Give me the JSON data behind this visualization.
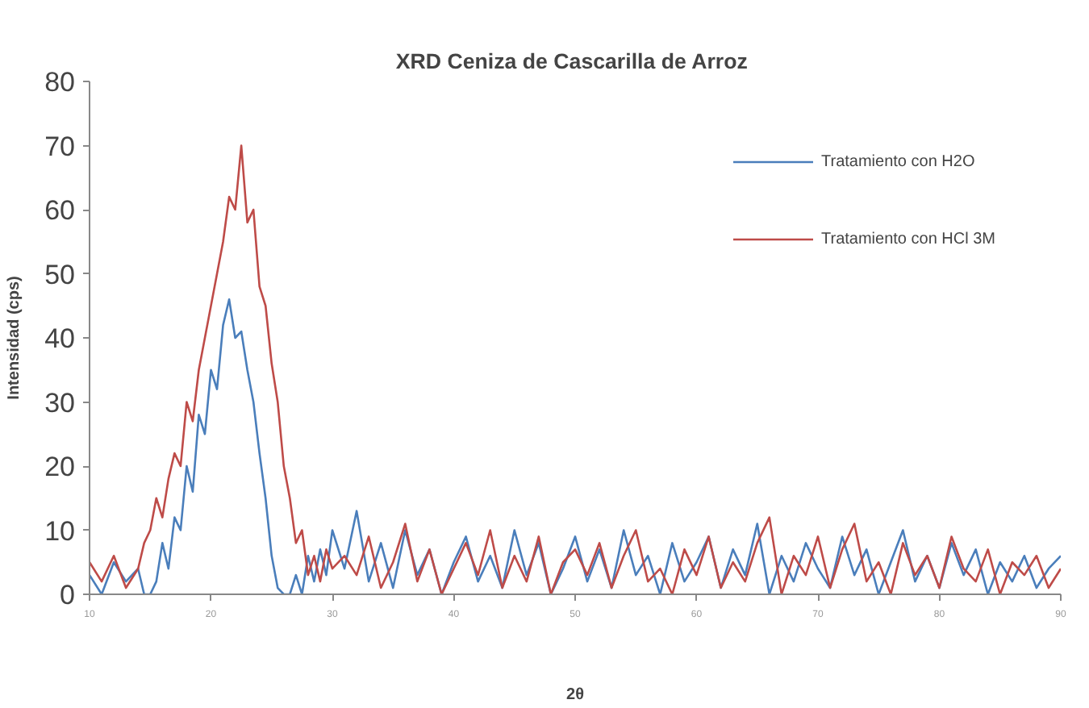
{
  "chart_data": {
    "type": "line",
    "title": "XRD  Ceniza de Cascarilla de Arroz",
    "xlabel": "2θ",
    "ylabel": "Intensidad (cps)",
    "x": [
      10,
      11,
      12,
      13,
      14,
      14.5,
      15,
      15.5,
      16,
      16.5,
      17,
      17.5,
      18,
      18.5,
      19,
      19.5,
      20,
      20.5,
      21,
      21.5,
      22,
      22.5,
      23,
      23.5,
      24,
      24.5,
      25,
      25.5,
      26,
      26.5,
      27,
      27.5,
      28,
      28.5,
      29,
      29.5,
      30,
      31,
      32,
      33,
      34,
      35,
      36,
      37,
      38,
      39,
      40,
      41,
      42,
      43,
      44,
      45,
      46,
      47,
      48,
      49,
      50,
      51,
      52,
      53,
      54,
      55,
      56,
      57,
      58,
      59,
      60,
      61,
      62,
      63,
      64,
      65,
      66,
      67,
      68,
      69,
      70,
      71,
      72,
      73,
      74,
      75,
      76,
      77,
      78,
      79,
      80,
      81,
      82,
      83,
      84,
      85,
      86,
      87,
      88,
      89,
      90
    ],
    "series": [
      {
        "name": "Tratamiento con H2O",
        "color": "#4a7ebb",
        "values": [
          3,
          0,
          5,
          2,
          4,
          0,
          0,
          2,
          8,
          4,
          12,
          10,
          20,
          16,
          28,
          25,
          35,
          32,
          42,
          46,
          40,
          41,
          35,
          30,
          22,
          15,
          6,
          1,
          0,
          0,
          3,
          0,
          6,
          2,
          7,
          3,
          10,
          4,
          13,
          2,
          8,
          1,
          10,
          3,
          7,
          0,
          5,
          9,
          2,
          6,
          1,
          10,
          3,
          8,
          0,
          4,
          9,
          2,
          7,
          1,
          10,
          3,
          6,
          0,
          8,
          2,
          5,
          9,
          1,
          7,
          3,
          11,
          0,
          6,
          2,
          8,
          4,
          1,
          9,
          3,
          7,
          0,
          5,
          10,
          2,
          6,
          1,
          8,
          3,
          7,
          0,
          5,
          2,
          6,
          1,
          4,
          6
        ]
      },
      {
        "name": "Tratamiento con HCl 3M",
        "color": "#be4b48",
        "values": [
          5,
          2,
          6,
          1,
          4,
          8,
          10,
          15,
          12,
          18,
          22,
          20,
          30,
          27,
          35,
          40,
          45,
          50,
          55,
          62,
          60,
          70,
          58,
          60,
          48,
          45,
          36,
          30,
          20,
          15,
          8,
          10,
          3,
          6,
          2,
          7,
          4,
          6,
          3,
          9,
          1,
          5,
          11,
          2,
          7,
          0,
          4,
          8,
          3,
          10,
          1,
          6,
          2,
          9,
          0,
          5,
          7,
          3,
          8,
          1,
          6,
          10,
          2,
          4,
          0,
          7,
          3,
          9,
          1,
          5,
          2,
          8,
          12,
          0,
          6,
          3,
          9,
          1,
          7,
          11,
          2,
          5,
          0,
          8,
          3,
          6,
          1,
          9,
          4,
          2,
          7,
          0,
          5,
          3,
          6,
          1,
          4
        ]
      }
    ],
    "xlim": [
      10,
      90
    ],
    "xticks": [
      10,
      20,
      30,
      40,
      50,
      60,
      70,
      80,
      90
    ],
    "ylim": [
      0,
      80
    ],
    "yticks": [
      0,
      10,
      20,
      30,
      40,
      50,
      60,
      70,
      80
    ],
    "grid": false,
    "legend": "top right",
    "line_style": "solid",
    "marker": "none"
  }
}
